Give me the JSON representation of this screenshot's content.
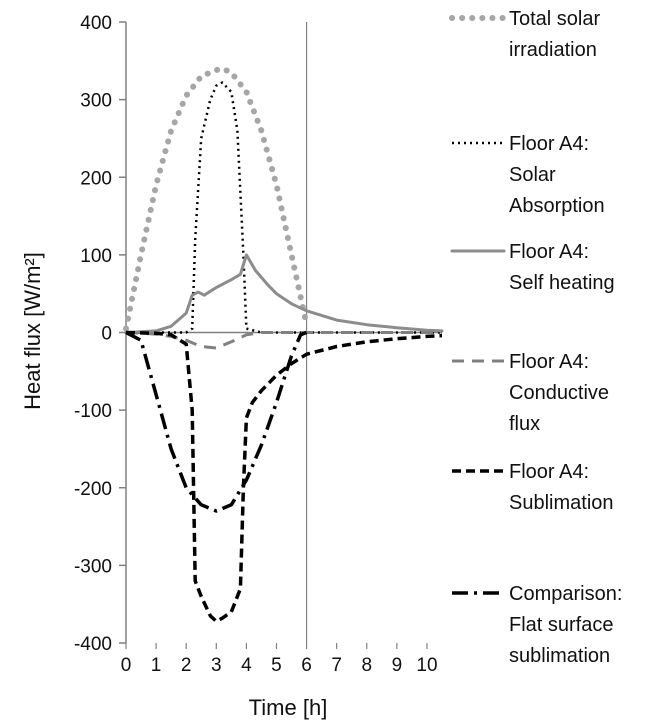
{
  "chart_data": {
    "type": "line",
    "title": "",
    "xlabel": "Time [h]",
    "ylabel": "Heat flux [W/m²]",
    "xlim": [
      0,
      10.5
    ],
    "ylim": [
      -400,
      400
    ],
    "x_ticks": [
      "0",
      "1",
      "2",
      "3",
      "4",
      "5",
      "6",
      "7",
      "8",
      "9",
      "10"
    ],
    "y_ticks": [
      "400",
      "300",
      "200",
      "100",
      "0",
      "-100",
      "-200",
      "-300",
      "-400"
    ],
    "reference_line_x": 6,
    "grid": false,
    "legend_position": "right",
    "series": [
      {
        "name": "Total solar irradiation",
        "legend_lines": [
          "Total solar",
          "irradiation"
        ],
        "color": "#a6a6a6",
        "style": "dotted-thick",
        "x": [
          0,
          0.5,
          1,
          1.5,
          2,
          2.5,
          3,
          3.2,
          3.5,
          4,
          4.5,
          5,
          5.5,
          6
        ],
        "y": [
          5,
          100,
          190,
          260,
          305,
          330,
          338,
          340,
          335,
          310,
          260,
          190,
          100,
          10
        ]
      },
      {
        "name": "Floor A4: Solar Absorption",
        "legend_lines": [
          "Floor A4:",
          "Solar",
          "Absorption"
        ],
        "color": "#000000",
        "style": "dotted",
        "x": [
          0,
          2,
          2.2,
          2.3,
          2.5,
          2.8,
          3,
          3.2,
          3.5,
          3.7,
          3.9,
          4,
          4.5,
          6,
          10.5
        ],
        "y": [
          0,
          0,
          5,
          120,
          250,
          300,
          318,
          322,
          310,
          260,
          100,
          5,
          0,
          0,
          0
        ]
      },
      {
        "name": "Floor A4: Self heating",
        "legend_lines": [
          "Floor A4:",
          "Self heating"
        ],
        "color": "#8c8c8c",
        "style": "solid",
        "x": [
          0,
          1,
          1.5,
          2,
          2.2,
          2.4,
          2.6,
          3,
          3.5,
          3.8,
          4,
          4.3,
          4.7,
          5,
          5.5,
          6,
          6.5,
          7,
          8,
          9,
          10,
          10.5
        ],
        "y": [
          0,
          2,
          8,
          25,
          48,
          52,
          48,
          58,
          68,
          75,
          100,
          80,
          62,
          50,
          37,
          28,
          22,
          16,
          10,
          6,
          3,
          2
        ]
      },
      {
        "name": "Floor A4: Conductive flux",
        "legend_lines": [
          "Floor A4:",
          "Conductive",
          "flux"
        ],
        "color": "#808080",
        "style": "dashed",
        "x": [
          0,
          1,
          1.5,
          2,
          2.5,
          3,
          3.5,
          4,
          4.5,
          6,
          8,
          10.5
        ],
        "y": [
          0,
          -2,
          -5,
          -10,
          -18,
          -20,
          -12,
          -3,
          0,
          0,
          0,
          0
        ]
      },
      {
        "name": "Floor A4: Sublimation",
        "legend_lines": [
          "Floor A4:",
          "Sublimation"
        ],
        "color": "#000000",
        "style": "dashed-bold",
        "x": [
          0,
          1,
          1.5,
          2,
          2.2,
          2.3,
          2.5,
          2.8,
          3,
          3.2,
          3.5,
          3.8,
          3.9,
          4,
          4.2,
          4.5,
          5,
          5.5,
          6,
          7,
          8,
          9,
          10,
          10.5
        ],
        "y": [
          0,
          -1,
          -3,
          -15,
          -100,
          -320,
          -340,
          -365,
          -372,
          -368,
          -360,
          -330,
          -200,
          -110,
          -90,
          -75,
          -55,
          -40,
          -28,
          -18,
          -12,
          -8,
          -5,
          -4
        ]
      },
      {
        "name": "Comparison: Flat surface sublimation",
        "legend_lines": [
          "Comparison:",
          "Flat surface",
          "sublimation"
        ],
        "color": "#000000",
        "style": "dashdot",
        "x": [
          0,
          0.5,
          1,
          1.5,
          2,
          2.5,
          3,
          3.5,
          4,
          4.5,
          5,
          5.5,
          5.8,
          6
        ],
        "y": [
          0,
          -10,
          -80,
          -150,
          -200,
          -222,
          -230,
          -222,
          -190,
          -145,
          -90,
          -30,
          -3,
          0
        ]
      }
    ]
  }
}
